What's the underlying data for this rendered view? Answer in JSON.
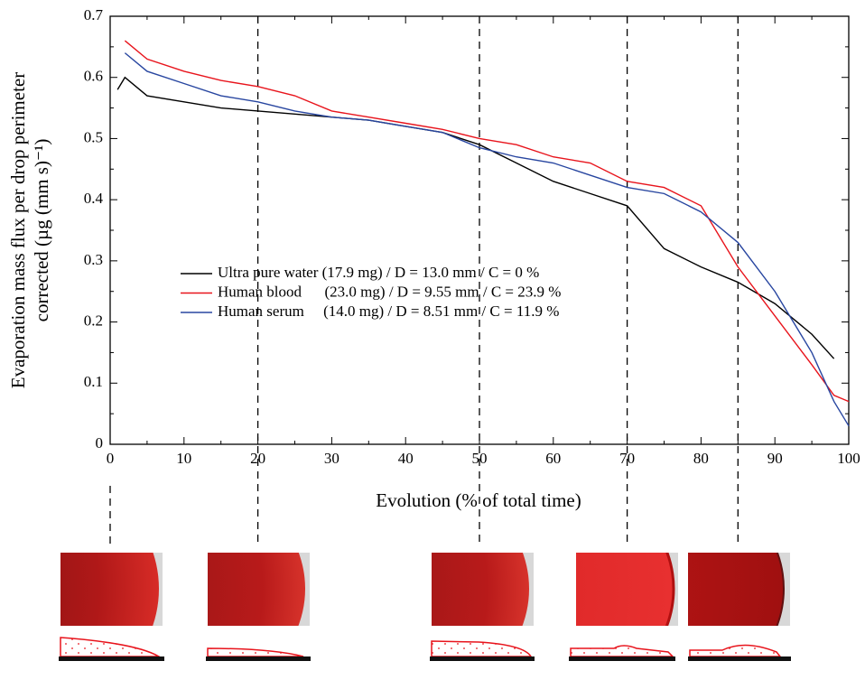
{
  "chart_data": {
    "type": "line",
    "ylabel": [
      "Evaporation mass flux per drop perimeter",
      "corrected (µg (mm s)⁻¹)"
    ],
    "xlabel": "Evolution (% of total time)",
    "x": [
      1,
      2,
      5,
      10,
      15,
      20,
      25,
      30,
      35,
      40,
      45,
      50,
      55,
      60,
      65,
      70,
      75,
      80,
      85,
      90,
      95,
      98,
      100
    ],
    "series": [
      {
        "name": "Ultra pure water (17.9 mg) / D = 13.0 mm / C = 0 %",
        "color": "#000000",
        "values": [
          0.58,
          0.6,
          0.57,
          0.56,
          0.55,
          0.545,
          0.54,
          0.535,
          0.53,
          0.52,
          0.51,
          0.49,
          0.46,
          0.43,
          0.41,
          0.39,
          0.32,
          0.29,
          0.265,
          0.23,
          0.18,
          0.14,
          null
        ]
      },
      {
        "name": "Human blood      (23.0 mg) / D = 9.55 mm / C = 23.9 %",
        "color": "#e8141c",
        "values": [
          null,
          0.66,
          0.63,
          0.61,
          0.595,
          0.585,
          0.57,
          0.545,
          0.535,
          0.525,
          0.515,
          0.5,
          0.49,
          0.47,
          0.46,
          0.43,
          0.42,
          0.39,
          0.29,
          0.21,
          0.13,
          0.08,
          0.07
        ]
      },
      {
        "name": "Human serum     (14.0 mg) / D = 8.51 mm / C = 11.9 %",
        "color": "#2846a0",
        "values": [
          null,
          0.64,
          0.61,
          0.59,
          0.57,
          0.56,
          0.545,
          0.535,
          0.53,
          0.52,
          0.51,
          0.485,
          0.47,
          0.46,
          0.44,
          0.42,
          0.41,
          0.38,
          0.33,
          0.25,
          0.15,
          0.07,
          0.03
        ]
      }
    ],
    "xlim": [
      0,
      100
    ],
    "xticks": [
      0,
      10,
      20,
      30,
      40,
      50,
      60,
      70,
      80,
      90,
      100
    ],
    "ylim": [
      0,
      0.7
    ],
    "yticks": [
      0,
      0.1,
      0.2,
      0.3,
      0.4,
      0.5,
      0.6,
      0.7
    ],
    "markers": [
      0,
      20,
      50,
      70,
      85
    ]
  }
}
